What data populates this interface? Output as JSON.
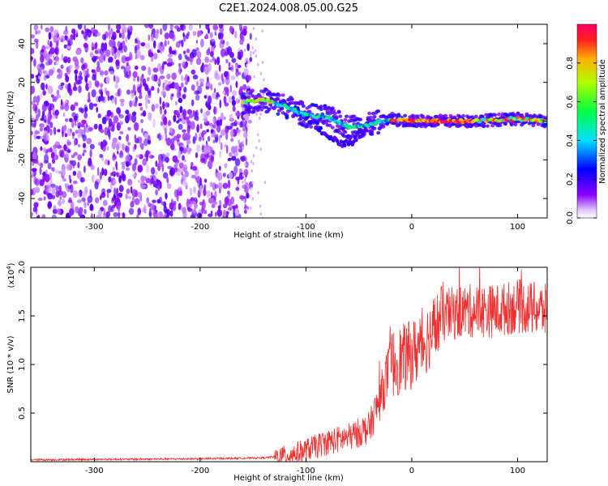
{
  "title": "C2E1.2024.008.05.00.G25",
  "chart_data": [
    {
      "type": "heatmap",
      "xlabel": "Height of straight line (km)",
      "ylabel": "Frequency (Hz)",
      "xlim": [
        -360,
        128
      ],
      "ylim": [
        -50,
        50
      ],
      "xticks": [
        -300,
        -200,
        -100,
        0,
        100
      ],
      "yticks": [
        -40,
        -20,
        0,
        20,
        40
      ],
      "xtick_labels": [
        "-300",
        "-200",
        "-100",
        "0",
        "100"
      ],
      "ytick_labels": [
        "-40",
        "-20",
        "0",
        "20",
        "40"
      ],
      "colorbar": {
        "label": "Normalized spectral amplitude",
        "range": [
          0,
          1
        ],
        "ticks": [
          0.0,
          0.2,
          0.4,
          0.6,
          0.8
        ],
        "tick_labels": [
          "0.0",
          "0.2",
          "0.4",
          "0.6",
          "0.8"
        ],
        "colormap": "rainbow"
      },
      "features": {
        "noise_region_x": [
          -360,
          -160
        ],
        "signal_track": [
          {
            "x": -160,
            "y": 10
          },
          {
            "x": -140,
            "y": 11
          },
          {
            "x": -120,
            "y": 8
          },
          {
            "x": -100,
            "y": 3
          },
          {
            "x": -80,
            "y": 2
          },
          {
            "x": -60,
            "y": -3
          },
          {
            "x": -40,
            "y": -2
          },
          {
            "x": -20,
            "y": 1
          },
          {
            "x": 0,
            "y": 0
          },
          {
            "x": 50,
            "y": 0
          },
          {
            "x": 100,
            "y": 1
          },
          {
            "x": 128,
            "y": 0
          }
        ]
      },
      "grid": false
    },
    {
      "type": "line",
      "xlabel": "Height of straight line (km)",
      "ylabel": "SNR (10 * v/v)",
      "y_scale_label": "(x10",
      "y_scale_exp": "4",
      "y_scale_close": ")",
      "xlim": [
        -360,
        128
      ],
      "ylim": [
        0,
        2.0
      ],
      "xticks": [
        -300,
        -200,
        -100,
        0,
        100
      ],
      "yticks": [
        0.5,
        1.0,
        1.5,
        2.0
      ],
      "xtick_labels": [
        "-300",
        "-200",
        "-100",
        "0",
        "100"
      ],
      "ytick_labels": [
        "0.5",
        "1.0",
        "1.5",
        "2.0"
      ],
      "series": [
        {
          "color": "#f03030",
          "profile": [
            {
              "x": -360,
              "y": 0.02
            },
            {
              "x": -200,
              "y": 0.03
            },
            {
              "x": -140,
              "y": 0.04
            },
            {
              "x": -120,
              "y": 0.06
            },
            {
              "x": -100,
              "y": 0.12
            },
            {
              "x": -80,
              "y": 0.2
            },
            {
              "x": -60,
              "y": 0.25
            },
            {
              "x": -40,
              "y": 0.35
            },
            {
              "x": -30,
              "y": 0.65
            },
            {
              "x": -20,
              "y": 1.0
            },
            {
              "x": -10,
              "y": 1.05
            },
            {
              "x": 0,
              "y": 1.1
            },
            {
              "x": 10,
              "y": 1.2
            },
            {
              "x": 20,
              "y": 1.35
            },
            {
              "x": 30,
              "y": 1.5
            },
            {
              "x": 50,
              "y": 1.55
            },
            {
              "x": 80,
              "y": 1.55
            },
            {
              "x": 100,
              "y": 1.6
            },
            {
              "x": 128,
              "y": 1.55
            }
          ]
        }
      ],
      "grid": false
    }
  ]
}
